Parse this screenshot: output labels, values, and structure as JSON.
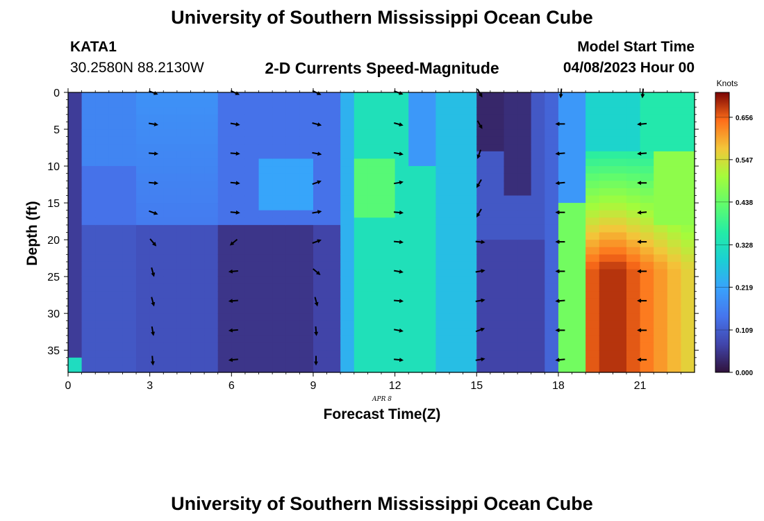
{
  "header": {
    "title": "University of Southern Mississippi Ocean Cube",
    "station_id": "KATA1",
    "coordinates": "30.2580N  88.2130W",
    "subtitle": "2-D Currents Speed-Magnitude",
    "model_start_label": "Model Start Time",
    "model_start_value": "04/08/2023 Hour 00"
  },
  "footer": {
    "title": "University of Southern Mississippi Ocean Cube"
  },
  "chart_data": {
    "type": "heatmap",
    "xlabel": "Forecast Time(Z)",
    "ylabel": "Depth (ft)",
    "date_label": "APR 8",
    "x_ticks": [
      0,
      3,
      6,
      9,
      12,
      15,
      18,
      21
    ],
    "y_ticks": [
      0,
      5,
      10,
      15,
      20,
      25,
      30,
      35
    ],
    "xlim": [
      0,
      23
    ],
    "ylim": [
      0,
      38
    ],
    "colorbar": {
      "title": "Knots",
      "ticks": [
        "0.000",
        "0.109",
        "0.219",
        "0.328",
        "0.438",
        "0.547",
        "0.656"
      ],
      "min": 0.0,
      "max": 0.72
    },
    "vector_hours": [
      3,
      6,
      9,
      12,
      15,
      18,
      21
    ],
    "vector_depths": [
      0,
      4,
      8,
      12,
      16,
      20,
      24,
      28,
      32,
      36
    ],
    "vector_directions_deg": [
      [
        20,
        25,
        25,
        20,
        60,
        95,
        95
      ],
      [
        10,
        10,
        15,
        15,
        60,
        180,
        175
      ],
      [
        5,
        5,
        10,
        10,
        110,
        175,
        175
      ],
      [
        5,
        5,
        -20,
        -10,
        120,
        175,
        180
      ],
      [
        20,
        5,
        -10,
        5,
        120,
        180,
        175
      ],
      [
        50,
        140,
        -20,
        5,
        5,
        180,
        180
      ],
      [
        75,
        175,
        40,
        10,
        -10,
        180,
        180
      ],
      [
        75,
        175,
        75,
        5,
        -10,
        175,
        180
      ],
      [
        80,
        175,
        85,
        10,
        -20,
        180,
        180
      ],
      [
        85,
        175,
        90,
        5,
        -10,
        175,
        180
      ]
    ]
  }
}
